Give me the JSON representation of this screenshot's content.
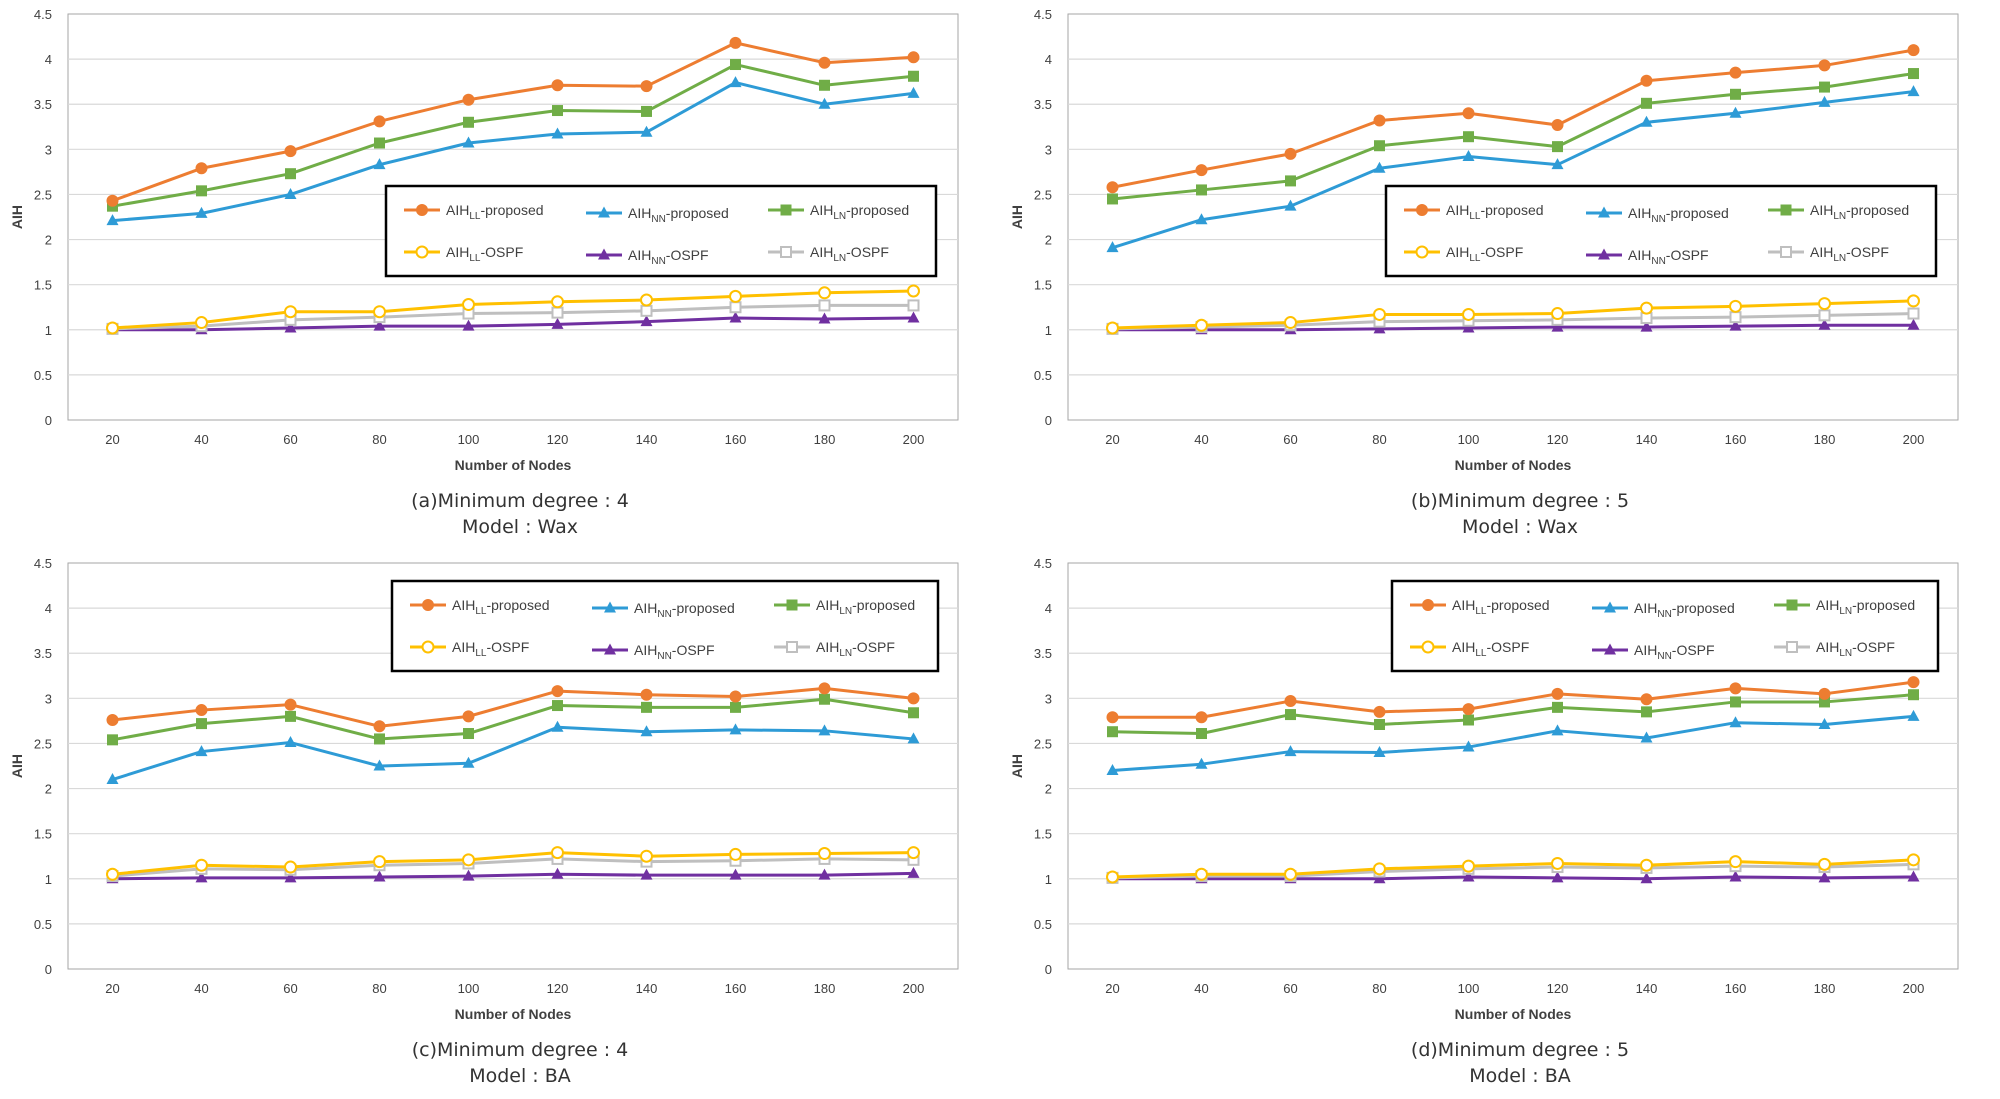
{
  "colors": {
    "AIH_LL-proposed": "#ED7D31",
    "AIH_NN-proposed": "#2E9BD6",
    "AIH_LN-proposed": "#70AD47",
    "AIH_LL-OSPF": "#FFC000",
    "AIH_NN-OSPF": "#7030A0",
    "AIH_LN-OSPF": "#BFBFBF"
  },
  "legend_entries": [
    {
      "base": "AIH",
      "sub": "LL",
      "suffix": "-proposed",
      "marker": "circle",
      "key": "AIH_LL-proposed"
    },
    {
      "base": "AIH",
      "sub": "NN",
      "suffix": "-proposed",
      "marker": "triangle",
      "key": "AIH_NN-proposed"
    },
    {
      "base": "AIH",
      "sub": "LN",
      "suffix": "-proposed",
      "marker": "square",
      "key": "AIH_LN-proposed"
    },
    {
      "base": "AIH",
      "sub": "LL",
      "suffix": "-OSPF",
      "marker": "circle-open",
      "key": "AIH_LL-OSPF"
    },
    {
      "base": "AIH",
      "sub": "NN",
      "suffix": "-OSPF",
      "marker": "triangle",
      "key": "AIH_NN-OSPF"
    },
    {
      "base": "AIH",
      "sub": "LN",
      "suffix": "-OSPF",
      "marker": "square-open",
      "key": "AIH_LN-OSPF"
    }
  ],
  "chart_data": [
    {
      "type": "line",
      "caption_line1": "(a)Minimum degree : 4",
      "caption_line2": "Model : Wax",
      "xlabel": "Number of Nodes",
      "ylabel": "AIH",
      "ylim": [
        0,
        4.5
      ],
      "yticks": [
        "0",
        "0.5",
        "1",
        "1.5",
        "2",
        "2.5",
        "3",
        "3.5",
        "4",
        "4.5"
      ],
      "categories": [
        20,
        40,
        60,
        80,
        100,
        120,
        140,
        160,
        180,
        200
      ],
      "legend_position": "right-middle",
      "grid": true,
      "series": [
        {
          "name": "AIH_LL-proposed",
          "values": [
            2.43,
            2.79,
            2.98,
            3.31,
            3.55,
            3.71,
            3.7,
            4.18,
            3.96,
            4.02
          ]
        },
        {
          "name": "AIH_LN-proposed",
          "values": [
            2.37,
            2.54,
            2.73,
            3.07,
            3.3,
            3.43,
            3.42,
            3.94,
            3.71,
            3.81
          ]
        },
        {
          "name": "AIH_NN-proposed",
          "values": [
            2.21,
            2.29,
            2.5,
            2.83,
            3.07,
            3.17,
            3.19,
            3.74,
            3.5,
            3.62
          ]
        },
        {
          "name": "AIH_LL-OSPF",
          "values": [
            1.02,
            1.08,
            1.2,
            1.2,
            1.28,
            1.31,
            1.33,
            1.37,
            1.41,
            1.43
          ]
        },
        {
          "name": "AIH_LN-OSPF",
          "values": [
            1.01,
            1.04,
            1.11,
            1.14,
            1.18,
            1.19,
            1.21,
            1.25,
            1.27,
            1.27
          ]
        },
        {
          "name": "AIH_NN-OSPF",
          "values": [
            1.0,
            1.0,
            1.02,
            1.04,
            1.04,
            1.06,
            1.09,
            1.13,
            1.12,
            1.13
          ]
        }
      ]
    },
    {
      "type": "line",
      "caption_line1": "(b)Minimum degree : 5",
      "caption_line2": "Model : Wax",
      "xlabel": "Number of Nodes",
      "ylabel": "AIH",
      "ylim": [
        0,
        4.5
      ],
      "yticks": [
        "0",
        "0.5",
        "1",
        "1.5",
        "2",
        "2.5",
        "3",
        "3.5",
        "4",
        "4.5"
      ],
      "categories": [
        20,
        40,
        60,
        80,
        100,
        120,
        140,
        160,
        180,
        200
      ],
      "legend_position": "right-middle",
      "grid": true,
      "series": [
        {
          "name": "AIH_LL-proposed",
          "values": [
            2.58,
            2.77,
            2.95,
            3.32,
            3.4,
            3.27,
            3.76,
            3.85,
            3.93,
            4.1
          ]
        },
        {
          "name": "AIH_LN-proposed",
          "values": [
            2.45,
            2.55,
            2.65,
            3.04,
            3.14,
            3.03,
            3.51,
            3.61,
            3.69,
            3.84
          ]
        },
        {
          "name": "AIH_NN-proposed",
          "values": [
            1.91,
            2.22,
            2.37,
            2.79,
            2.92,
            2.83,
            3.3,
            3.4,
            3.52,
            3.64
          ]
        },
        {
          "name": "AIH_LL-OSPF",
          "values": [
            1.02,
            1.05,
            1.08,
            1.17,
            1.17,
            1.18,
            1.24,
            1.26,
            1.29,
            1.32
          ]
        },
        {
          "name": "AIH_LN-OSPF",
          "values": [
            1.01,
            1.03,
            1.05,
            1.09,
            1.1,
            1.11,
            1.13,
            1.14,
            1.16,
            1.18
          ]
        },
        {
          "name": "AIH_NN-OSPF",
          "values": [
            1.0,
            1.0,
            1.0,
            1.01,
            1.02,
            1.03,
            1.03,
            1.04,
            1.05,
            1.05
          ]
        }
      ]
    },
    {
      "type": "line",
      "caption_line1": "(c)Minimum degree : 4",
      "caption_line2": "Model : BA",
      "xlabel": "Number of Nodes",
      "ylabel": "AIH",
      "ylim": [
        0,
        4.5
      ],
      "yticks": [
        "0",
        "0.5",
        "1",
        "1.5",
        "2",
        "2.5",
        "3",
        "3.5",
        "4",
        "4.5"
      ],
      "categories": [
        20,
        40,
        60,
        80,
        100,
        120,
        140,
        160,
        180,
        200
      ],
      "legend_position": "top-right",
      "grid": true,
      "series": [
        {
          "name": "AIH_LL-proposed",
          "values": [
            2.76,
            2.87,
            2.93,
            2.69,
            2.8,
            3.08,
            3.04,
            3.02,
            3.11,
            3.0
          ]
        },
        {
          "name": "AIH_LN-proposed",
          "values": [
            2.54,
            2.72,
            2.8,
            2.55,
            2.61,
            2.92,
            2.9,
            2.9,
            2.99,
            2.84
          ]
        },
        {
          "name": "AIH_NN-proposed",
          "values": [
            2.1,
            2.41,
            2.51,
            2.25,
            2.28,
            2.68,
            2.63,
            2.65,
            2.64,
            2.55
          ]
        },
        {
          "name": "AIH_LL-OSPF",
          "values": [
            1.05,
            1.15,
            1.13,
            1.19,
            1.21,
            1.29,
            1.25,
            1.27,
            1.28,
            1.29
          ]
        },
        {
          "name": "AIH_LN-OSPF",
          "values": [
            1.03,
            1.11,
            1.1,
            1.15,
            1.17,
            1.22,
            1.19,
            1.2,
            1.22,
            1.21
          ]
        },
        {
          "name": "AIH_NN-OSPF",
          "values": [
            1.0,
            1.01,
            1.01,
            1.02,
            1.03,
            1.05,
            1.04,
            1.04,
            1.04,
            1.06
          ]
        }
      ]
    },
    {
      "type": "line",
      "caption_line1": "(d)Minimum degree : 5",
      "caption_line2": "Model : BA",
      "xlabel": "Number of Nodes",
      "ylabel": "AIH",
      "ylim": [
        0,
        4.5
      ],
      "yticks": [
        "0",
        "0.5",
        "1",
        "1.5",
        "2",
        "2.5",
        "3",
        "3.5",
        "4",
        "4.5"
      ],
      "categories": [
        20,
        40,
        60,
        80,
        100,
        120,
        140,
        160,
        180,
        200
      ],
      "legend_position": "top-right",
      "grid": true,
      "series": [
        {
          "name": "AIH_LL-proposed",
          "values": [
            2.79,
            2.79,
            2.97,
            2.85,
            2.88,
            3.05,
            2.99,
            3.11,
            3.05,
            3.18
          ]
        },
        {
          "name": "AIH_LN-proposed",
          "values": [
            2.63,
            2.61,
            2.82,
            2.71,
            2.76,
            2.9,
            2.85,
            2.96,
            2.96,
            3.04
          ]
        },
        {
          "name": "AIH_NN-proposed",
          "values": [
            2.2,
            2.27,
            2.41,
            2.4,
            2.46,
            2.64,
            2.56,
            2.73,
            2.71,
            2.8
          ]
        },
        {
          "name": "AIH_LL-OSPF",
          "values": [
            1.02,
            1.05,
            1.05,
            1.11,
            1.14,
            1.17,
            1.15,
            1.19,
            1.16,
            1.21
          ]
        },
        {
          "name": "AIH_LN-OSPF",
          "values": [
            1.01,
            1.03,
            1.03,
            1.08,
            1.11,
            1.13,
            1.12,
            1.14,
            1.13,
            1.16
          ]
        },
        {
          "name": "AIH_NN-OSPF",
          "values": [
            1.0,
            1.0,
            1.0,
            1.0,
            1.02,
            1.01,
            1.0,
            1.02,
            1.01,
            1.02
          ]
        }
      ]
    }
  ]
}
